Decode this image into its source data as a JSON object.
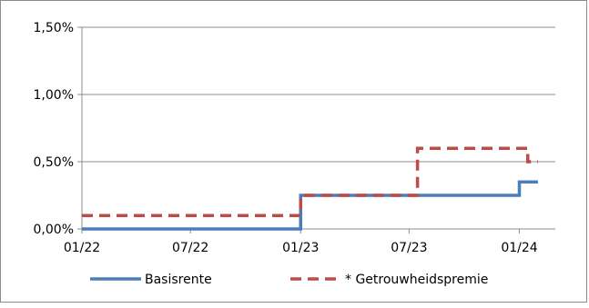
{
  "chart_data": {
    "type": "line",
    "x_type": "date",
    "xlim": [
      "2022-01-01",
      "2024-03-01"
    ],
    "ylim": [
      0,
      1.5
    ],
    "y_unit": "%",
    "x_ticks": [
      "2022-01-01",
      "2022-07-01",
      "2023-01-01",
      "2023-07-01",
      "2024-01-01"
    ],
    "x_tick_labels": [
      "01/22",
      "07/22",
      "01/23",
      "07/23",
      "01/24"
    ],
    "y_ticks": [
      0,
      0.5,
      1.0,
      1.5
    ],
    "y_tick_labels": [
      "0,00%",
      "0,50%",
      "1,00%",
      "1,50%"
    ],
    "grid": "horizontal",
    "legend_position": "bottom",
    "step": true,
    "series": [
      {
        "name": "Basisrente",
        "color": "#4a7ebb",
        "style": "solid",
        "x": [
          "2022-01-01",
          "2023-01-01",
          "2024-01-01",
          "2024-02-01"
        ],
        "y": [
          0,
          0.25,
          0.35,
          0.35
        ]
      },
      {
        "name": "* Getrouwheidspremie",
        "color": "#be4b48",
        "style": "dashed",
        "x": [
          "2022-01-01",
          "2023-01-01",
          "2023-07-15",
          "2024-01-15",
          "2024-02-01"
        ],
        "y": [
          0.1,
          0.25,
          0.6,
          0.5,
          0.5
        ]
      }
    ]
  }
}
